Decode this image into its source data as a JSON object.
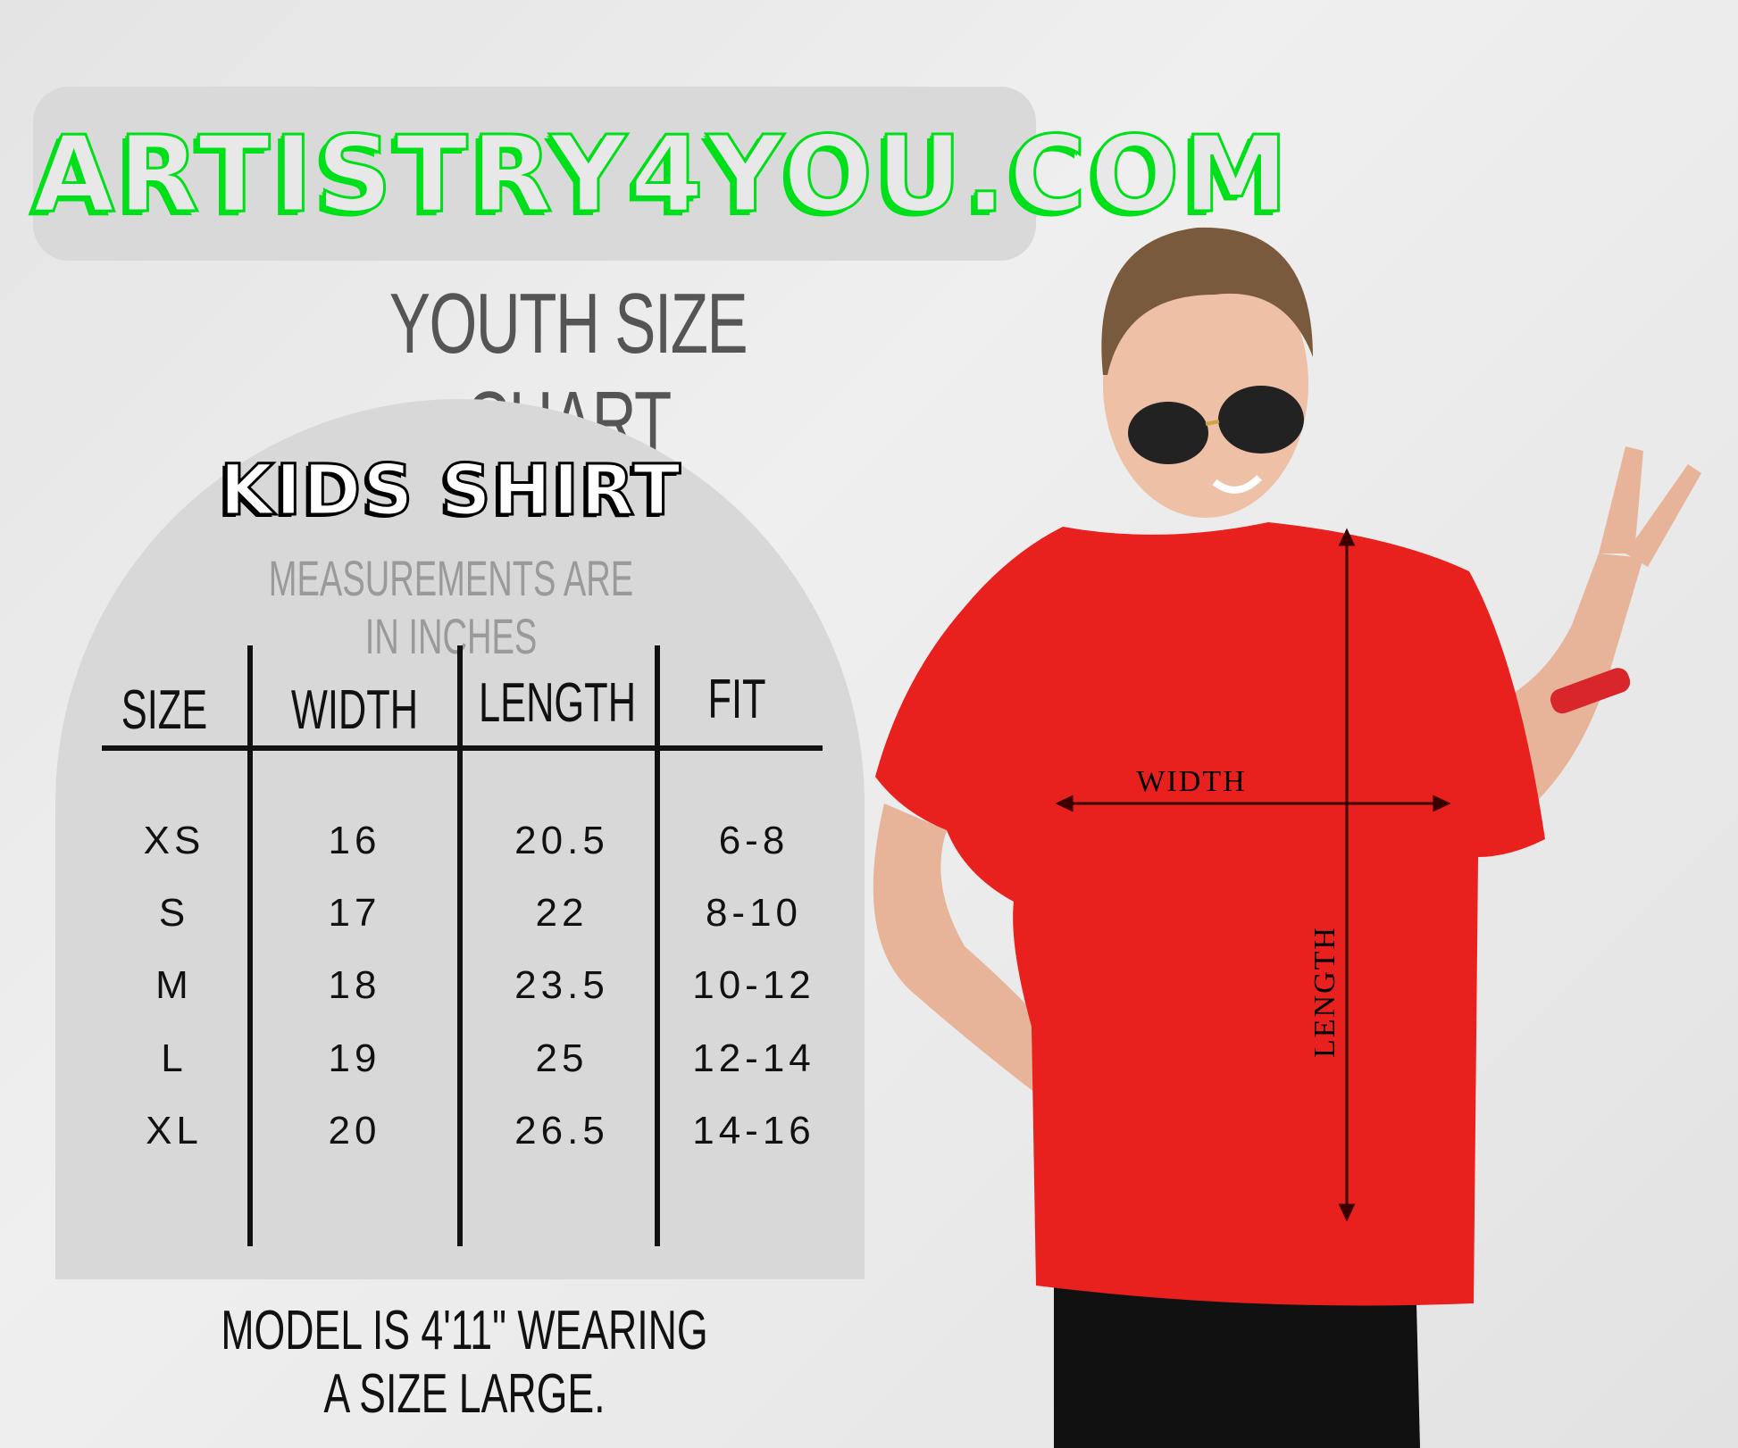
{
  "logo": {
    "text": "ARTISTRY4YOU.COM",
    "color": "#00e01a"
  },
  "title": "YOUTH SIZE CHART",
  "card": {
    "heading": "KIDS SHIRT",
    "subheading": "MEASUREMENTS ARE IN INCHES",
    "table": {
      "headers": [
        "SIZE",
        "WIDTH",
        "LENGTH",
        "FIT"
      ],
      "rows": [
        [
          "XS",
          "16",
          "20.5",
          "6-8"
        ],
        [
          "S",
          "17",
          "22",
          "8-10"
        ],
        [
          "M",
          "18",
          "23.5",
          "10-12"
        ],
        [
          "L",
          "19",
          "25",
          "12-14"
        ],
        [
          "XL",
          "20",
          "26.5",
          "14-16"
        ]
      ]
    }
  },
  "footer": "MODEL IS 4'11\" WEARING A SIZE LARGE.",
  "photo": {
    "width_label": "WIDTH",
    "length_label": "LENGTH",
    "shirt_color": "#e8201e"
  }
}
